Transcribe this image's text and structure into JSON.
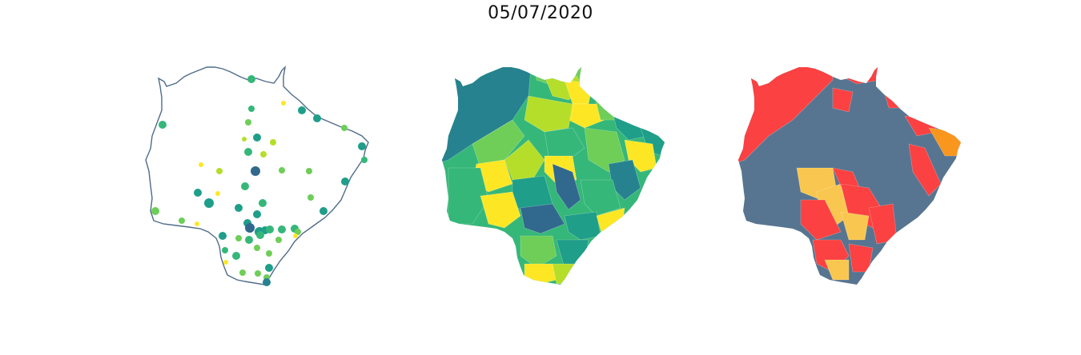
{
  "title": "05/07/2020",
  "colors": {
    "outline": "#4f6b8a",
    "viridis": [
      "#31688e",
      "#26828e",
      "#1f9e89",
      "#35b779",
      "#6ece58",
      "#b5de2b",
      "#fde725"
    ],
    "risk": {
      "high": "#fb4141",
      "medium": "#f9c74f",
      "orange": "#f8961e",
      "low": "#577590"
    }
  },
  "panels": [
    {
      "name": "points-map"
    },
    {
      "name": "choropleth-map"
    },
    {
      "name": "risk-map"
    }
  ]
}
